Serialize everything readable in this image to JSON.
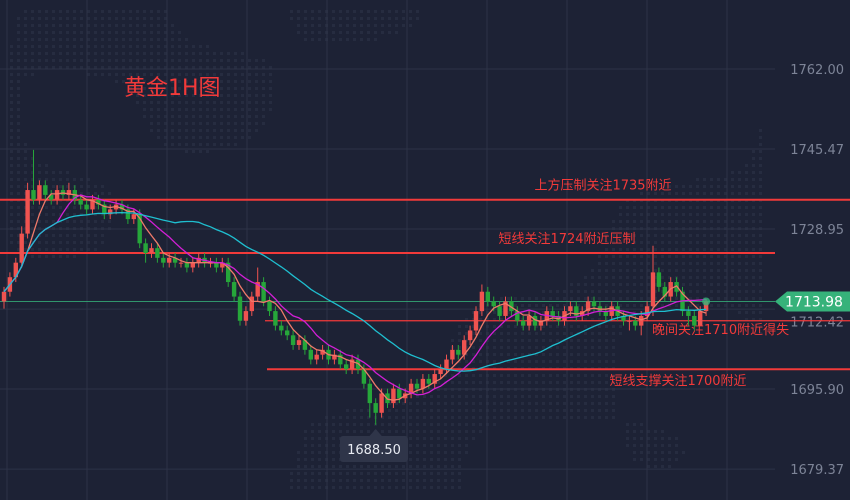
{
  "chart_data": {
    "type": "candlestick",
    "title": "黄金1H图",
    "y_ticks": [
      1762.0,
      1745.47,
      1728.95,
      1712.42,
      1695.9,
      1679.37
    ],
    "ylim": [
      1673,
      1775
    ],
    "grid": true,
    "up_color": "#ef5350",
    "down_color": "#26a63a",
    "ma_colors": [
      "#f07a6a",
      "#d21fd6",
      "#1fbfd0"
    ],
    "current_price": 1713.98,
    "current_price_color": "#36b27a",
    "low_label": 1688.5,
    "open": [
      1714,
      1716,
      1719,
      1722,
      1728,
      1737,
      1735,
      1738,
      1736,
      1735,
      1737,
      1736,
      1737,
      1735,
      1734,
      1733,
      1735,
      1734,
      1732,
      1733,
      1734,
      1733,
      1731,
      1732,
      1726,
      1724,
      1725,
      1723,
      1722,
      1723,
      1722,
      1722,
      1721,
      1722,
      1723,
      1722,
      1722,
      1721,
      1722,
      1718,
      1715,
      1710,
      1712,
      1715,
      1718,
      1714,
      1712,
      1709,
      1708,
      1707,
      1705,
      1706,
      1704,
      1702,
      1703,
      1704,
      1702,
      1703,
      1701,
      1700,
      1702,
      1700,
      1697,
      1693,
      1691,
      1695,
      1693,
      1696,
      1694,
      1695,
      1697,
      1696,
      1698,
      1697,
      1699,
      1700,
      1702,
      1704,
      1703,
      1706,
      1708,
      1712,
      1716,
      1714,
      1713,
      1711,
      1714,
      1712,
      1710,
      1709,
      1711,
      1709,
      1710,
      1712,
      1711,
      1710,
      1712,
      1713,
      1711,
      1712,
      1714,
      1713,
      1712,
      1711,
      1713,
      1711,
      1710,
      1710,
      1709,
      1711,
      1713,
      1720,
      1717,
      1715,
      1718,
      1716,
      1712,
      1711,
      1709,
      1712
    ],
    "high": [
      1717,
      1720,
      1723,
      1729.5,
      1738.5,
      1745.3,
      1739,
      1739,
      1737,
      1738,
      1738,
      1738.5,
      1738,
      1736,
      1735,
      1736,
      1736,
      1735,
      1734,
      1735,
      1735,
      1734,
      1733,
      1733,
      1727,
      1726,
      1726,
      1724,
      1724,
      1724,
      1723,
      1723,
      1723,
      1724,
      1724,
      1723,
      1723,
      1723,
      1723,
      1719,
      1716,
      1713,
      1716,
      1721,
      1719,
      1715,
      1713,
      1710,
      1709,
      1708,
      1707,
      1707,
      1705,
      1704,
      1705,
      1705,
      1704,
      1704,
      1702,
      1703,
      1703,
      1701,
      1698,
      1694,
      1696,
      1696,
      1697,
      1697,
      1696,
      1698,
      1698,
      1699,
      1699,
      1700,
      1701,
      1703,
      1705,
      1705,
      1707,
      1709,
      1713,
      1717.5,
      1717,
      1715,
      1714,
      1715,
      1715,
      1713,
      1711,
      1712,
      1712,
      1711,
      1713,
      1713,
      1712,
      1713,
      1714,
      1714,
      1713,
      1715,
      1715,
      1714,
      1713,
      1714,
      1714,
      1712,
      1711,
      1711,
      1712,
      1714,
      1725.5,
      1721,
      1718,
      1719,
      1719,
      1717,
      1713,
      1712,
      1713,
      1714.5
    ],
    "low": [
      1712.5,
      1715,
      1718,
      1721,
      1727,
      1734,
      1734,
      1735,
      1734,
      1734,
      1735,
      1735,
      1734,
      1733,
      1732,
      1732,
      1733,
      1731,
      1731,
      1732,
      1732,
      1730,
      1730,
      1725,
      1722,
      1723,
      1722,
      1721,
      1721,
      1721,
      1721,
      1720,
      1720,
      1721,
      1721,
      1721,
      1720,
      1720,
      1717,
      1714,
      1709,
      1709,
      1711,
      1714,
      1713,
      1711,
      1708,
      1707,
      1706,
      1704,
      1704,
      1703,
      1701,
      1701,
      1702,
      1701,
      1701,
      1700,
      1699,
      1699,
      1699,
      1696,
      1690,
      1688.5,
      1690,
      1692,
      1692,
      1693,
      1693,
      1694,
      1695,
      1695,
      1696,
      1696,
      1698,
      1699,
      1701,
      1702,
      1702,
      1705,
      1707,
      1711,
      1713,
      1712,
      1710,
      1710,
      1711,
      1709,
      1708,
      1708,
      1708,
      1708,
      1709,
      1710,
      1709,
      1709,
      1711,
      1710,
      1710,
      1711,
      1712,
      1711,
      1710,
      1710,
      1710,
      1709,
      1708,
      1708,
      1707,
      1710,
      1711,
      1716,
      1714,
      1714,
      1715,
      1711,
      1709,
      1708,
      1710,
      1711
    ],
    "close": [
      1716,
      1719,
      1722,
      1728,
      1737,
      1735,
      1738,
      1736,
      1735,
      1737,
      1736,
      1737,
      1735,
      1734,
      1733,
      1735,
      1734,
      1732,
      1733,
      1734,
      1733,
      1731,
      1732,
      1726,
      1724,
      1725,
      1723,
      1722,
      1723,
      1722,
      1722,
      1721,
      1722,
      1723,
      1722,
      1722,
      1721,
      1722,
      1718,
      1715,
      1710,
      1712,
      1715,
      1718,
      1714,
      1712,
      1709,
      1708,
      1707,
      1705,
      1706,
      1704,
      1702,
      1703,
      1704,
      1702,
      1703,
      1701,
      1700,
      1702,
      1700,
      1697,
      1693,
      1691,
      1695,
      1693,
      1696,
      1694,
      1695,
      1697,
      1696,
      1698,
      1697,
      1699,
      1700,
      1702,
      1704,
      1703,
      1706,
      1708,
      1712,
      1716,
      1714,
      1713,
      1711,
      1714,
      1712,
      1710,
      1709,
      1711,
      1709,
      1710,
      1712,
      1711,
      1710,
      1712,
      1713,
      1711,
      1712,
      1714,
      1713,
      1712,
      1711,
      1713,
      1711,
      1710,
      1710,
      1709,
      1711,
      1713,
      1720,
      1717,
      1715,
      1718,
      1716,
      1712,
      1711,
      1709,
      1712,
      1713.98
    ],
    "levels": [
      {
        "price": 1735,
        "label": "上方压制关注1735附近",
        "color": "#f23a3a"
      },
      {
        "price": 1724,
        "label": "短线关注1724附近压制",
        "color": "#f23a3a"
      },
      {
        "price": 1710,
        "label": "晚间关注1710附近得失",
        "color": "#f23a3a"
      },
      {
        "price": 1700,
        "label": "短线支撑关注1700附近",
        "color": "#f23a3a"
      }
    ]
  }
}
